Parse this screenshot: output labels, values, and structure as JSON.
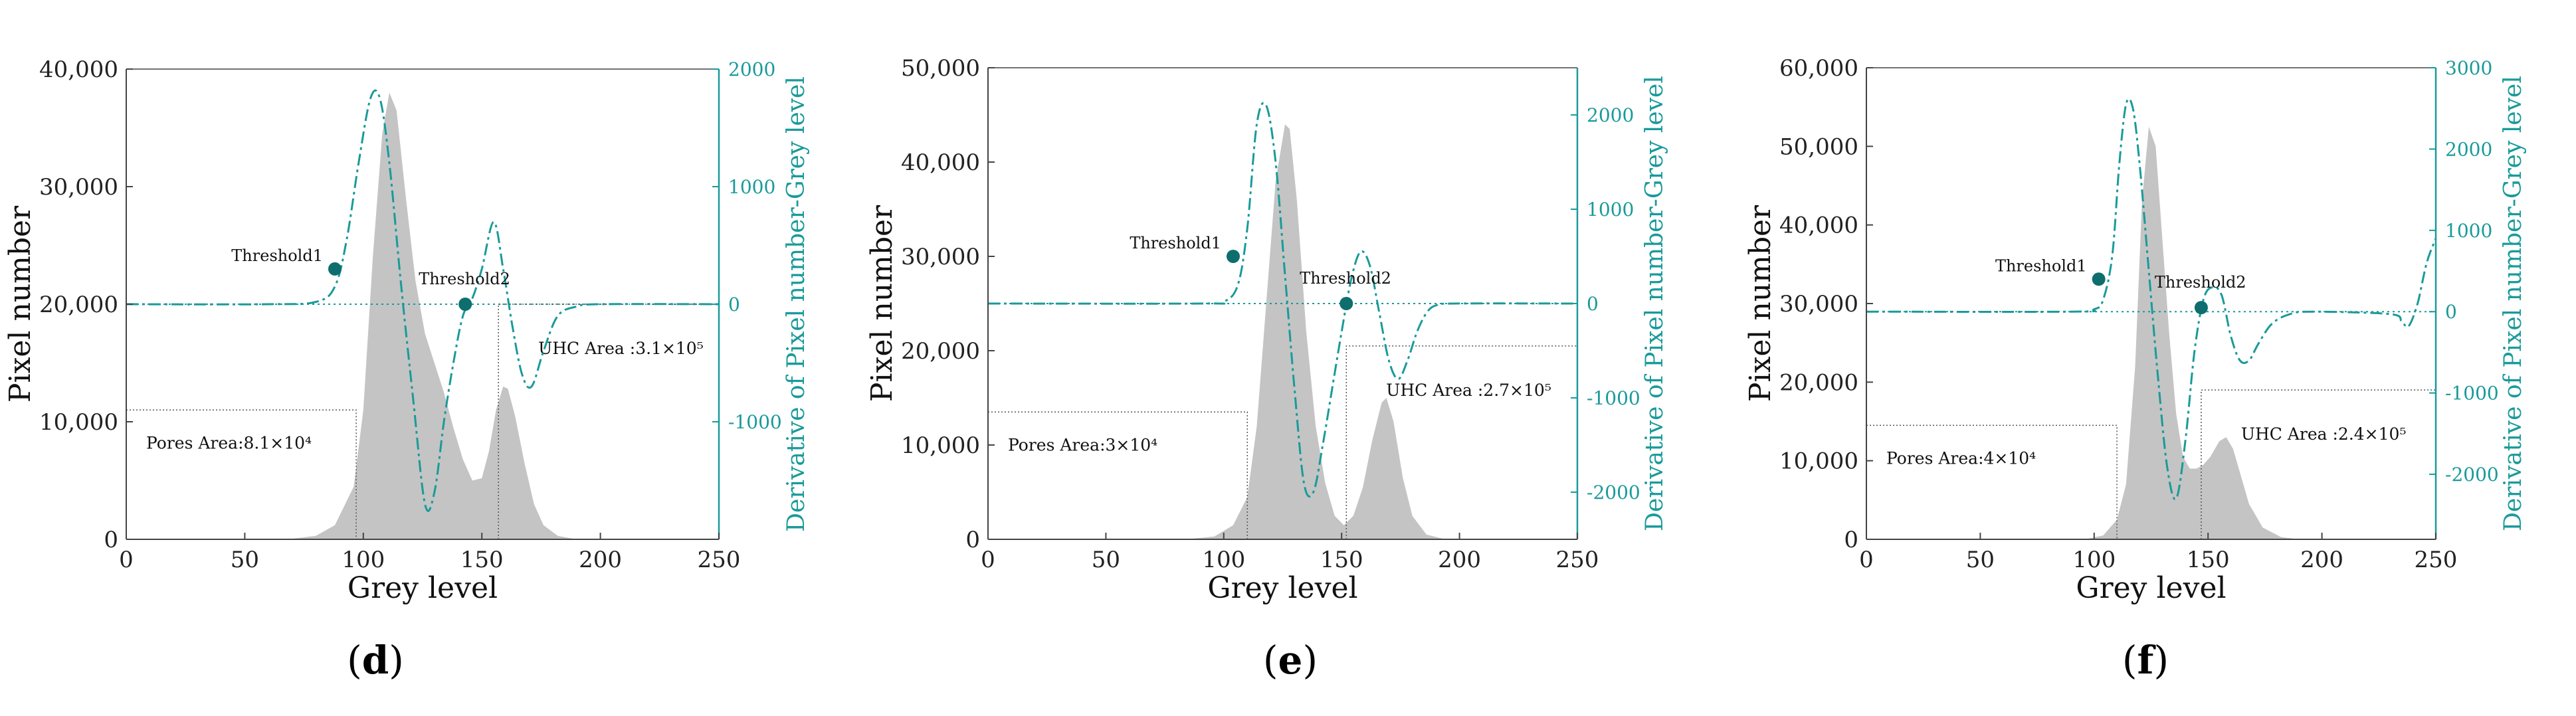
{
  "chart_data": [
    {
      "type": "area",
      "id": "d",
      "caption": "d",
      "xlabel": "Grey level",
      "ylabel": "Pixel number",
      "y2label": "Derivative of Pixel number-Grey level",
      "xlim": [
        0,
        250
      ],
      "ylim": [
        0,
        40000
      ],
      "y2lim": [
        -2000,
        2000
      ],
      "x_ticks": [
        "0",
        "50",
        "100",
        "150",
        "200",
        "250"
      ],
      "x_tick_values": [
        0,
        50,
        100,
        150,
        200,
        250
      ],
      "y_ticks": [
        "0",
        "10,000",
        "20,000",
        "30,000",
        "40,000"
      ],
      "y_tick_values": [
        0,
        10000,
        20000,
        30000,
        40000
      ],
      "y2_ticks": [
        "-1000",
        "0",
        "1000",
        "2000"
      ],
      "y2_tick_values": [
        -1000,
        0,
        1000,
        2000
      ],
      "histogram": {
        "x": [
          68,
          80,
          88,
          96,
          100,
          104,
          108,
          111,
          114,
          118,
          122,
          126,
          130,
          134,
          138,
          142,
          146,
          150,
          153,
          156,
          159,
          161,
          164,
          168,
          172,
          176,
          182,
          190
        ],
        "y": [
          0,
          300,
          1200,
          4500,
          11000,
          24000,
          34500,
          38000,
          36500,
          29000,
          22000,
          17500,
          15000,
          12500,
          9500,
          6800,
          5000,
          5200,
          7500,
          11000,
          13000,
          12800,
          10500,
          6500,
          3000,
          1200,
          300,
          0
        ]
      },
      "derivative": {
        "x": [
          0,
          60,
          80,
          88,
          93,
          98,
          103,
          107,
          111,
          116,
          121,
          126,
          130,
          134,
          138,
          142,
          146,
          150,
          155,
          159,
          163,
          167,
          171,
          176,
          182,
          190,
          200,
          250
        ],
        "y": [
          0,
          0,
          20,
          150,
          550,
          1200,
          1750,
          1750,
          1200,
          150,
          -800,
          -1700,
          -1600,
          -1000,
          -500,
          -100,
          50,
          300,
          700,
          300,
          -200,
          -600,
          -700,
          -400,
          -100,
          -20,
          0,
          0
        ]
      },
      "thresholds": [
        {
          "label": "Threshold1",
          "x": 88,
          "y2": 300
        },
        {
          "label": "Threshold2",
          "x": 143,
          "y2": 0
        }
      ],
      "areas": [
        {
          "label": "Pores Area:8.1×10⁴",
          "x_end": 97,
          "y_level": 11000
        },
        {
          "label": "UHC Area :3.1×10⁵",
          "x_start": 157,
          "y_level": 20000
        }
      ]
    },
    {
      "type": "area",
      "id": "e",
      "caption": "e",
      "xlabel": "Grey level",
      "ylabel": "Pixel number",
      "y2label": "Derivative of Pixel number-Grey level",
      "xlim": [
        0,
        250
      ],
      "ylim": [
        0,
        50000
      ],
      "y2lim": [
        -2500,
        2500
      ],
      "x_ticks": [
        "0",
        "50",
        "100",
        "150",
        "200",
        "250"
      ],
      "x_tick_values": [
        0,
        50,
        100,
        150,
        200,
        250
      ],
      "y_ticks": [
        "0",
        "10,000",
        "20,000",
        "30,000",
        "40,000",
        "50,000"
      ],
      "y_tick_values": [
        0,
        10000,
        20000,
        30000,
        40000,
        50000
      ],
      "y2_ticks": [
        "-2000",
        "-1000",
        "0",
        "1000",
        "2000"
      ],
      "y2_tick_values": [
        -2000,
        -1000,
        0,
        1000,
        2000
      ],
      "histogram": {
        "x": [
          84,
          96,
          104,
          110,
          114,
          118,
          122,
          126,
          128,
          131,
          135,
          139,
          143,
          147,
          151,
          155,
          159,
          163,
          167,
          169,
          172,
          176,
          180,
          186,
          194
        ],
        "y": [
          0,
          300,
          1500,
          4500,
          12000,
          25000,
          38000,
          44000,
          43500,
          36000,
          22000,
          12000,
          6000,
          2500,
          1500,
          2500,
          5500,
          10500,
          14500,
          15000,
          12500,
          6500,
          2500,
          500,
          0
        ]
      },
      "derivative": {
        "x": [
          0,
          90,
          100,
          106,
          110,
          114,
          118,
          122,
          126,
          130,
          134,
          138,
          142,
          146,
          150,
          154,
          158,
          162,
          166,
          170,
          174,
          178,
          182,
          186,
          190,
          198,
          250
        ],
        "y": [
          0,
          0,
          20,
          200,
          800,
          1900,
          2100,
          1500,
          300,
          -900,
          -1900,
          -2000,
          -1500,
          -900,
          -300,
          250,
          550,
          400,
          -100,
          -600,
          -800,
          -600,
          -300,
          -100,
          -20,
          0,
          0
        ]
      },
      "thresholds": [
        {
          "label": "Threshold1",
          "x": 104,
          "y2": 500
        },
        {
          "label": "Threshold2",
          "x": 152,
          "y2": 0
        }
      ],
      "areas": [
        {
          "label": "Pores Area:3×10⁴",
          "x_end": 110,
          "y_level": 13500
        },
        {
          "label": "UHC Area :2.7×10⁵",
          "x_start": 152,
          "y_level": 20500
        }
      ]
    },
    {
      "type": "area",
      "id": "f",
      "caption": "f",
      "xlabel": "Grey level",
      "ylabel": "Pixel number",
      "y2label": "Derivative of Pixel number-Grey level",
      "xlim": [
        0,
        250
      ],
      "ylim": [
        0,
        60000
      ],
      "y2lim": [
        -2800,
        3000
      ],
      "x_ticks": [
        "0",
        "50",
        "100",
        "150",
        "200",
        "250"
      ],
      "x_tick_values": [
        0,
        50,
        100,
        150,
        200,
        250
      ],
      "y_ticks": [
        "0",
        "10,000",
        "20,000",
        "30,000",
        "40,000",
        "50,000",
        "60,000"
      ],
      "y_tick_values": [
        0,
        10000,
        20000,
        30000,
        40000,
        50000,
        60000
      ],
      "y2_ticks": [
        "-2000",
        "-1000",
        "0",
        "1000",
        "2000",
        "3000"
      ],
      "y2_tick_values": [
        -2000,
        -1000,
        0,
        1000,
        2000,
        3000
      ],
      "histogram": {
        "x": [
          96,
          104,
          110,
          114,
          118,
          121,
          124,
          127,
          130,
          133,
          136,
          139,
          142,
          145,
          148,
          151,
          155,
          158,
          161,
          164,
          168,
          174,
          182,
          190
        ],
        "y": [
          0,
          500,
          2500,
          7000,
          22000,
          43000,
          52500,
          50000,
          38000,
          26000,
          16000,
          10500,
          9000,
          9000,
          9500,
          10500,
          12500,
          13000,
          11500,
          8500,
          4500,
          1500,
          300,
          0
        ]
      },
      "derivative": {
        "x": [
          0,
          90,
          100,
          104,
          108,
          111,
          114,
          117,
          120,
          124,
          128,
          132,
          136,
          140,
          144,
          148,
          152,
          156,
          160,
          164,
          168,
          172,
          178,
          186,
          196,
          230,
          235,
          238,
          242,
          246,
          250
        ],
        "y": [
          0,
          0,
          30,
          150,
          700,
          1800,
          2550,
          2500,
          1800,
          500,
          -800,
          -1900,
          -2300,
          -1600,
          -500,
          150,
          300,
          200,
          -300,
          -600,
          -600,
          -400,
          -150,
          -30,
          0,
          -30,
          -120,
          -180,
          100,
          600,
          900
        ]
      },
      "thresholds": [
        {
          "label": "Threshold1",
          "x": 102,
          "y2": 400
        },
        {
          "label": "Threshold2",
          "x": 147,
          "y2": 50
        }
      ],
      "areas": [
        {
          "label": "Pores Area:4×10⁴",
          "x_end": 110,
          "y_level": 14500
        },
        {
          "label": "UHC Area :2.4×10⁵",
          "x_start": 147,
          "y_level": 19000
        }
      ]
    }
  ]
}
